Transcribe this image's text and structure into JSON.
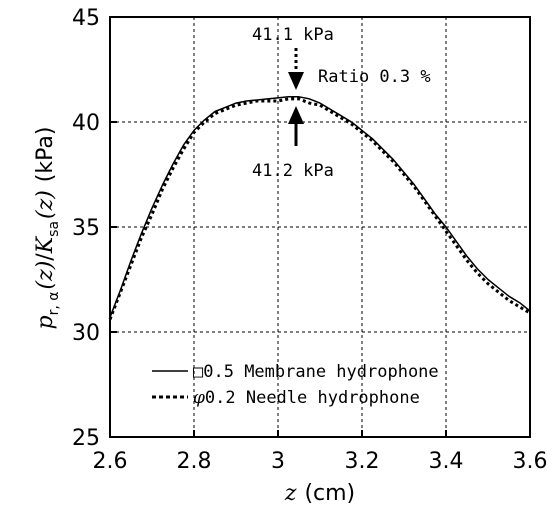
{
  "chart_data": {
    "type": "line",
    "xlabel_var": "z",
    "xlabel_unit": "(cm)",
    "ylabel_p": "p",
    "ylabel_p_sub": "r, α",
    "ylabel_z1": "(z)",
    "ylabel_slash": "/",
    "ylabel_K": "K",
    "ylabel_K_sub": "sa",
    "ylabel_z2": "(z)",
    "ylabel_unit": "(kPa)",
    "xlim": [
      2.6,
      3.6
    ],
    "ylim": [
      25,
      45
    ],
    "x_ticks": [
      2.6,
      2.8,
      3.0,
      3.2,
      3.4,
      3.6
    ],
    "x_tick_labels": [
      "2.6",
      "2.8",
      "3",
      "3.2",
      "3.4",
      "3.6"
    ],
    "y_ticks": [
      25,
      30,
      35,
      40,
      45
    ],
    "y_tick_labels": [
      "25",
      "30",
      "35",
      "40",
      "45"
    ],
    "grid": true,
    "legend_position": "bottom-center",
    "series": [
      {
        "name": "□0.5 Membrane hydrophone",
        "style": "solid",
        "color": "#000000",
        "x": [
          2.6,
          2.625,
          2.65,
          2.675,
          2.7,
          2.725,
          2.75,
          2.775,
          2.8,
          2.825,
          2.85,
          2.875,
          2.9,
          2.925,
          2.95,
          2.975,
          3.0,
          3.025,
          3.05,
          3.075,
          3.1,
          3.125,
          3.15,
          3.175,
          3.2,
          3.225,
          3.25,
          3.275,
          3.3,
          3.325,
          3.35,
          3.375,
          3.4,
          3.425,
          3.45,
          3.475,
          3.5,
          3.525,
          3.55,
          3.575,
          3.6
        ],
        "y": [
          30.7,
          32.0,
          33.4,
          34.7,
          35.9,
          37.0,
          38.0,
          38.9,
          39.6,
          40.1,
          40.5,
          40.7,
          40.9,
          41.0,
          41.05,
          41.1,
          41.15,
          41.2,
          41.2,
          41.1,
          40.9,
          40.6,
          40.3,
          40.0,
          39.6,
          39.2,
          38.7,
          38.2,
          37.6,
          37.0,
          36.3,
          35.6,
          35.0,
          34.3,
          33.6,
          33.0,
          32.5,
          32.1,
          31.7,
          31.4,
          31.0
        ]
      },
      {
        "name": "φ0.2 Needle hydrophone",
        "style": "dotted",
        "color": "#000000",
        "x": [
          2.6,
          2.625,
          2.65,
          2.675,
          2.7,
          2.725,
          2.75,
          2.775,
          2.8,
          2.825,
          2.85,
          2.875,
          2.9,
          2.925,
          2.95,
          2.975,
          3.0,
          3.025,
          3.05,
          3.075,
          3.1,
          3.125,
          3.15,
          3.175,
          3.2,
          3.225,
          3.25,
          3.275,
          3.3,
          3.325,
          3.35,
          3.375,
          3.4,
          3.425,
          3.45,
          3.475,
          3.5,
          3.525,
          3.55,
          3.575,
          3.6
        ],
        "y": [
          30.6,
          31.9,
          33.2,
          34.5,
          35.6,
          36.8,
          37.8,
          38.7,
          39.5,
          40.0,
          40.4,
          40.6,
          40.8,
          40.9,
          41.0,
          41.0,
          41.0,
          41.1,
          41.1,
          40.9,
          40.8,
          40.5,
          40.2,
          39.9,
          39.5,
          39.1,
          38.6,
          38.1,
          37.5,
          36.9,
          36.2,
          35.5,
          34.8,
          34.1,
          33.4,
          32.8,
          32.3,
          31.9,
          31.5,
          31.2,
          30.9
        ]
      }
    ],
    "annotations": {
      "top_label": "41.1 kPa",
      "ratio_label": "Ratio 0.3 %",
      "bottom_label": "41.2 kPa"
    },
    "legend": [
      {
        "symbol": "□",
        "text": "0.5 Membrane hydrophone",
        "style": "solid"
      },
      {
        "symbol": "φ",
        "text": "0.2 Needle hydrophone",
        "style": "dotted"
      }
    ]
  }
}
